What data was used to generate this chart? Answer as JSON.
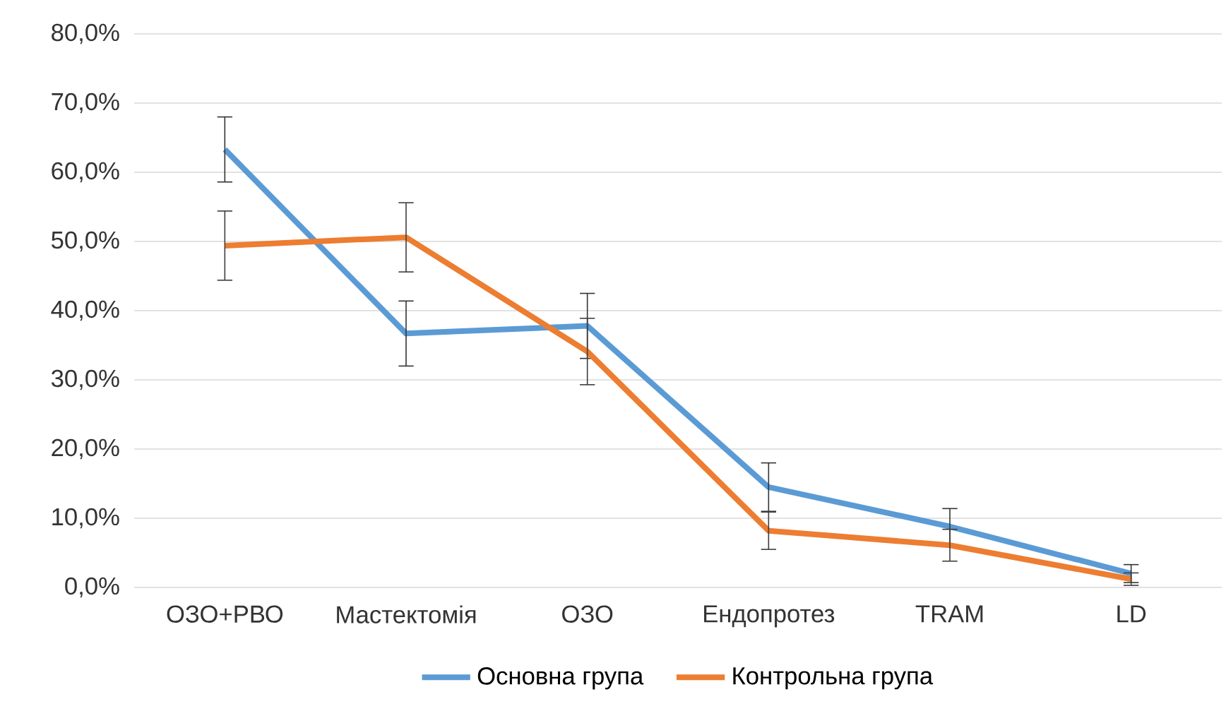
{
  "chart_data": {
    "type": "line",
    "categories": [
      "ОЗО+РВО",
      "Мастектомія",
      "ОЗО",
      "Ендопротез",
      "TRAM",
      "LD"
    ],
    "series": [
      {
        "name": "Основна група",
        "color": "#5b9bd5",
        "values": [
          63.3,
          36.7,
          37.8,
          14.5,
          8.8,
          2.0
        ],
        "errors": [
          4.7,
          4.7,
          4.7,
          3.5,
          2.6,
          1.3
        ]
      },
      {
        "name": "Контрольна група",
        "color": "#ed7d31",
        "values": [
          49.4,
          50.6,
          34.1,
          8.2,
          6.1,
          1.2
        ],
        "errors": [
          5.0,
          5.0,
          4.8,
          2.7,
          2.3,
          0.9
        ]
      }
    ],
    "ylim": [
      0,
      80
    ],
    "yticks": [
      {
        "value": 0,
        "label": "0,0%"
      },
      {
        "value": 10,
        "label": "10,0%"
      },
      {
        "value": 20,
        "label": "20,0%"
      },
      {
        "value": 30,
        "label": "30,0%"
      },
      {
        "value": 40,
        "label": "40,0%"
      },
      {
        "value": 50,
        "label": "50,0%"
      },
      {
        "value": 60,
        "label": "60,0%"
      },
      {
        "value": 70,
        "label": "70,0%"
      },
      {
        "value": 80,
        "label": "80,0%"
      }
    ],
    "grid": "y",
    "legend": "bottom"
  }
}
